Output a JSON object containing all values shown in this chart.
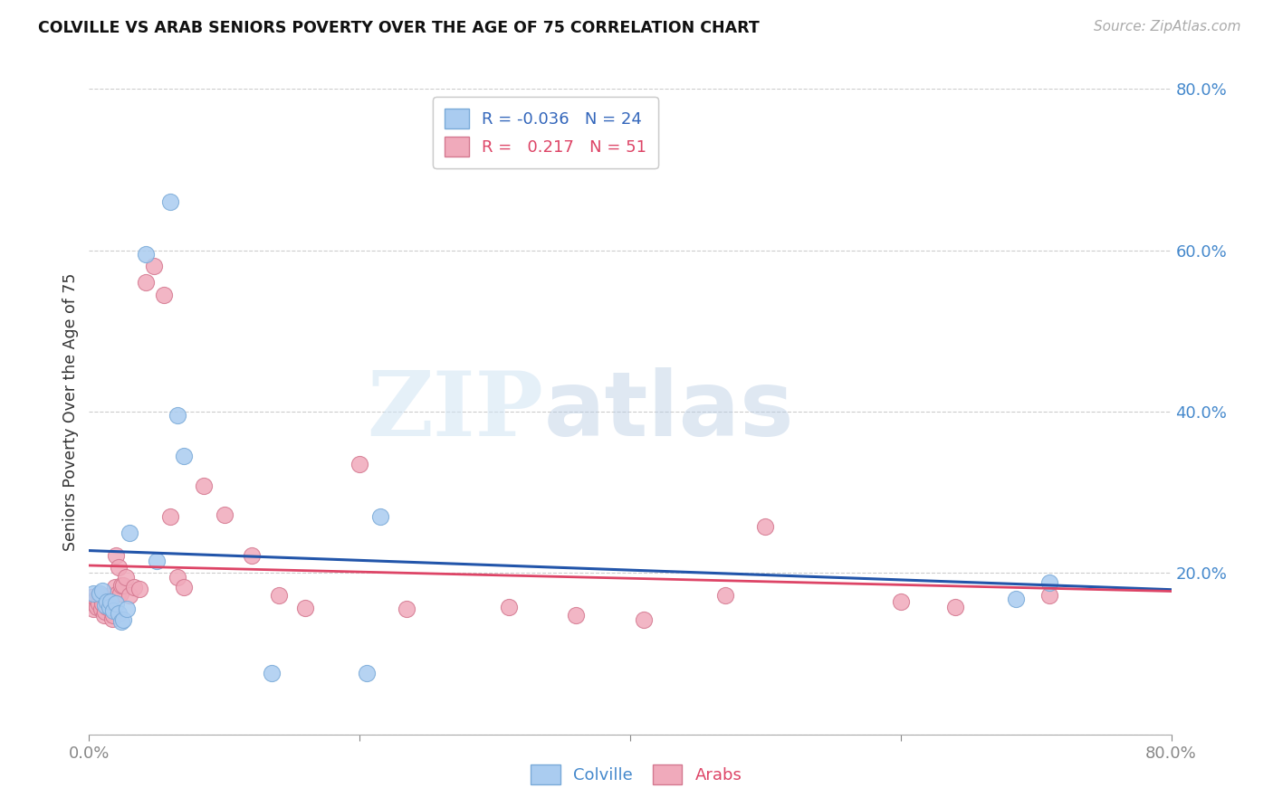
{
  "title": "COLVILLE VS ARAB SENIORS POVERTY OVER THE AGE OF 75 CORRELATION CHART",
  "source": "Source: ZipAtlas.com",
  "ylabel": "Seniors Poverty Over the Age of 75",
  "xlim": [
    0.0,
    0.8
  ],
  "ylim": [
    0.0,
    0.8
  ],
  "yticks": [
    0.0,
    0.2,
    0.4,
    0.6,
    0.8
  ],
  "ytick_labels": [
    "",
    "20.0%",
    "40.0%",
    "60.0%",
    "80.0%"
  ],
  "watermark_zip": "ZIP",
  "watermark_atlas": "atlas",
  "colville_color": "#aaccf0",
  "colville_edge": "#7aaad8",
  "arab_color": "#f0aabb",
  "arab_edge": "#d47890",
  "colville_line_color": "#2255aa",
  "arab_line_color": "#dd4466",
  "colville_R": -0.036,
  "colville_N": 24,
  "arab_R": 0.217,
  "arab_N": 51,
  "colville_x": [
    0.003,
    0.008,
    0.01,
    0.012,
    0.013,
    0.015,
    0.016,
    0.018,
    0.02,
    0.022,
    0.024,
    0.025,
    0.028,
    0.03,
    0.042,
    0.05,
    0.06,
    0.065,
    0.07,
    0.135,
    0.205,
    0.215,
    0.685,
    0.71
  ],
  "colville_y": [
    0.175,
    0.175,
    0.178,
    0.16,
    0.165,
    0.158,
    0.165,
    0.153,
    0.162,
    0.15,
    0.14,
    0.142,
    0.155,
    0.25,
    0.595,
    0.215,
    0.66,
    0.395,
    0.345,
    0.076,
    0.076,
    0.27,
    0.168,
    0.188
  ],
  "arab_x": [
    0.001,
    0.002,
    0.003,
    0.004,
    0.005,
    0.006,
    0.007,
    0.007,
    0.008,
    0.009,
    0.01,
    0.011,
    0.012,
    0.013,
    0.014,
    0.015,
    0.016,
    0.017,
    0.018,
    0.019,
    0.02,
    0.021,
    0.022,
    0.023,
    0.024,
    0.025,
    0.027,
    0.03,
    0.033,
    0.037,
    0.042,
    0.048,
    0.055,
    0.06,
    0.065,
    0.07,
    0.085,
    0.1,
    0.12,
    0.14,
    0.16,
    0.2,
    0.235,
    0.31,
    0.36,
    0.41,
    0.47,
    0.5,
    0.6,
    0.64,
    0.71
  ],
  "arab_y": [
    0.165,
    0.17,
    0.155,
    0.162,
    0.168,
    0.158,
    0.162,
    0.172,
    0.172,
    0.155,
    0.162,
    0.148,
    0.152,
    0.158,
    0.167,
    0.168,
    0.172,
    0.143,
    0.148,
    0.182,
    0.222,
    0.175,
    0.207,
    0.175,
    0.185,
    0.185,
    0.195,
    0.172,
    0.182,
    0.18,
    0.56,
    0.58,
    0.545,
    0.27,
    0.195,
    0.182,
    0.308,
    0.272,
    0.222,
    0.172,
    0.157,
    0.335,
    0.155,
    0.158,
    0.148,
    0.142,
    0.172,
    0.258,
    0.165,
    0.158,
    0.172
  ]
}
